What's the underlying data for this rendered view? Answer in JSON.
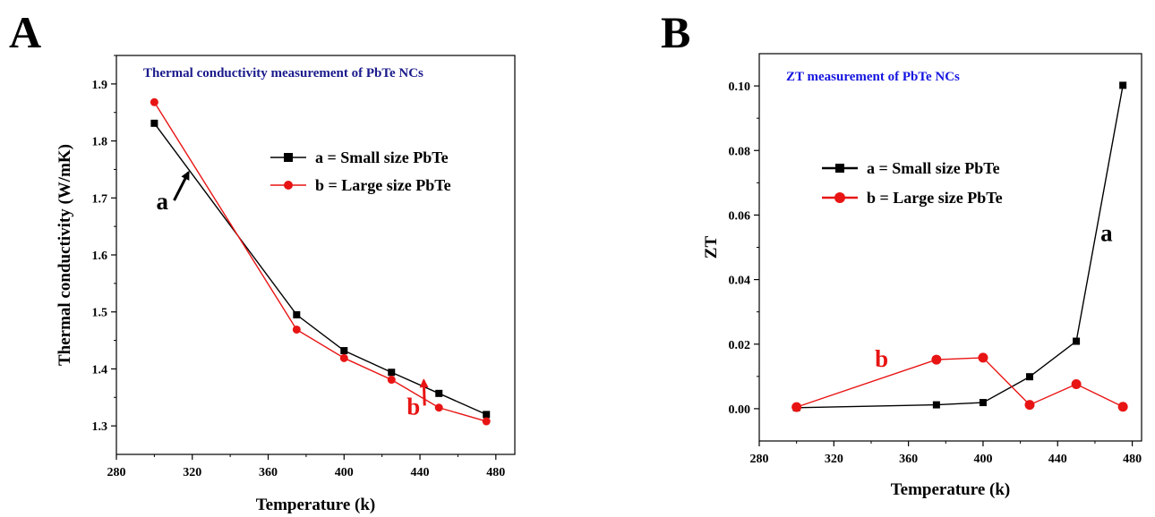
{
  "panels": {
    "a": "A",
    "b": "B"
  },
  "chart_data": [
    {
      "type": "line",
      "title": "Thermal conductivity measurement of PbTe NCs",
      "title_color": "#1a1a8c",
      "xlabel": "Temperature (k)",
      "ylabel": "Thermal conductivity (W/mK)",
      "xlim": [
        280,
        490
      ],
      "ylim": [
        1.25,
        1.95
      ],
      "xticks": [
        280,
        320,
        360,
        400,
        440,
        480
      ],
      "yticks": [
        1.3,
        1.4,
        1.5,
        1.6,
        1.7,
        1.8,
        1.9
      ],
      "ytick_labels": [
        "1.3",
        "1.4",
        "1.5",
        "1.6",
        "1.7",
        "1.8",
        "1.9"
      ],
      "legend_position": "upper-right",
      "series": [
        {
          "name": "a = Small size PbTe",
          "color": "#000000",
          "marker": "square",
          "x": [
            300,
            375,
            400,
            425,
            450,
            475
          ],
          "y": [
            1.831,
            1.495,
            1.432,
            1.394,
            1.357,
            1.32
          ]
        },
        {
          "name": "b = Large size PbTe",
          "color": "#e81414",
          "marker": "circle",
          "x": [
            300,
            375,
            400,
            425,
            450,
            475
          ],
          "y": [
            1.868,
            1.469,
            1.419,
            1.381,
            1.332,
            1.308
          ]
        }
      ],
      "annotations": [
        {
          "text": "a",
          "color": "#000000",
          "x": 301,
          "y": 1.68,
          "arrow_to": [
            318,
            1.745
          ]
        },
        {
          "text": "b",
          "color": "#e81414",
          "x": 433,
          "y": 1.32,
          "arrow_to": [
            442,
            1.38
          ]
        }
      ]
    },
    {
      "type": "line",
      "title": "ZT measurement of PbTe NCs",
      "title_color": "#1515e0",
      "xlabel": "Temperature (k)",
      "ylabel": "ZT",
      "xlim": [
        280,
        485
      ],
      "ylim": [
        -0.01,
        0.11
      ],
      "xticks": [
        280,
        320,
        360,
        400,
        440,
        480
      ],
      "yticks": [
        0.0,
        0.02,
        0.04,
        0.06,
        0.08,
        0.1
      ],
      "ytick_labels": [
        "0.00",
        "0.02",
        "0.04",
        "0.06",
        "0.08",
        "0.10"
      ],
      "legend_position": "upper-left",
      "series": [
        {
          "name": "a = Small size PbTe",
          "color": "#000000",
          "marker": "square",
          "x": [
            300,
            375,
            400,
            425,
            450,
            475
          ],
          "y": [
            0.0003,
            0.0012,
            0.0019,
            0.0099,
            0.0209,
            0.1002
          ]
        },
        {
          "name": "b = Large size PbTe",
          "color": "#e81414",
          "marker": "circle",
          "x": [
            300,
            375,
            400,
            425,
            450,
            475
          ],
          "y": [
            0.0005,
            0.0152,
            0.0158,
            0.0012,
            0.0076,
            0.0006
          ]
        }
      ],
      "annotations": [
        {
          "text": "a",
          "color": "#000000",
          "x": 463,
          "y": 0.052
        },
        {
          "text": "b",
          "color": "#e81414",
          "x": 342,
          "y": 0.013
        }
      ]
    }
  ]
}
